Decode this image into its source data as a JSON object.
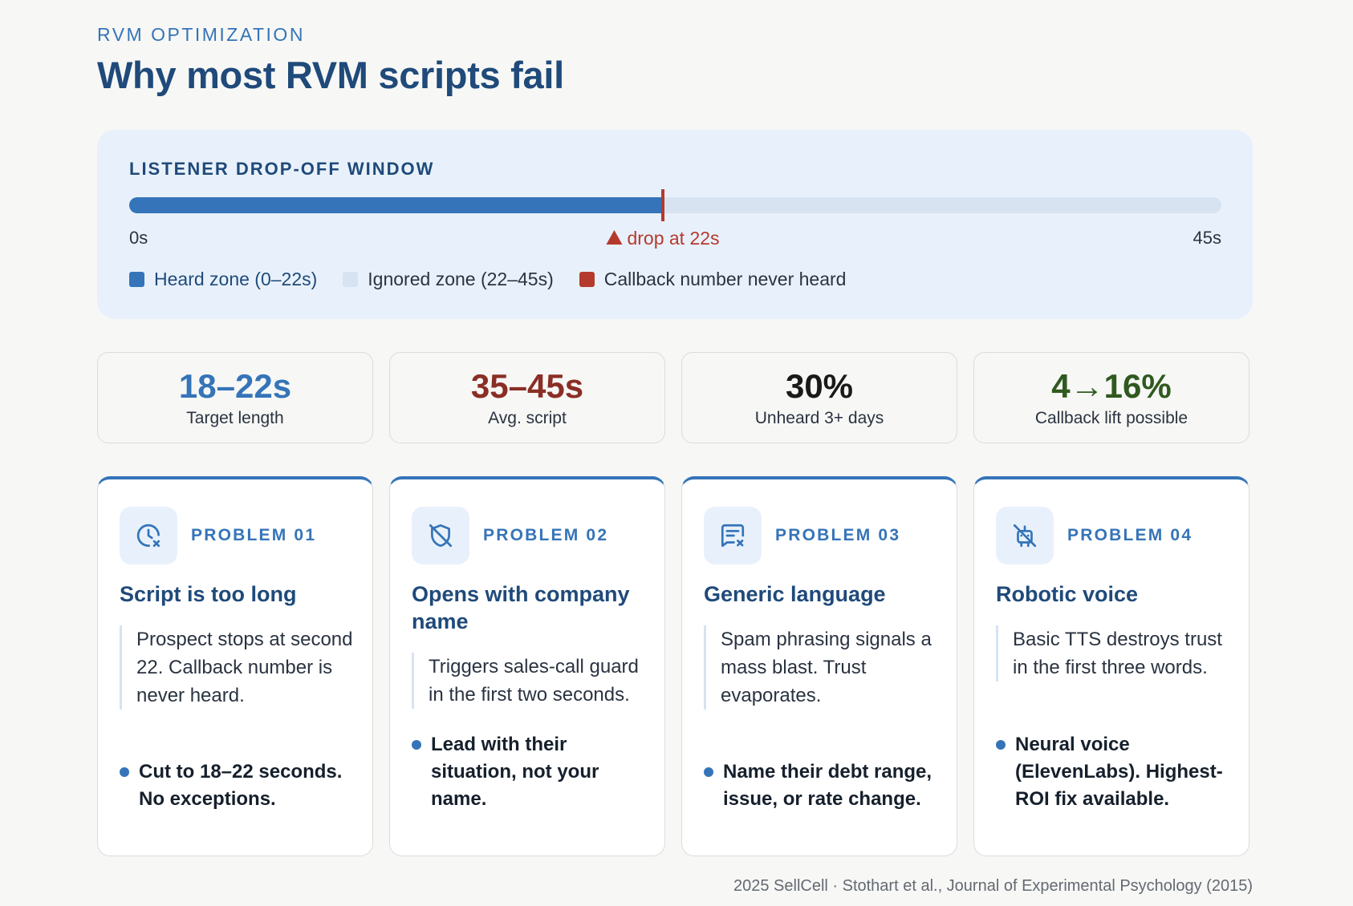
{
  "header": {
    "eyebrow": "RVM OPTIMIZATION",
    "title": "Why most RVM scripts fail"
  },
  "dropoff": {
    "label": "LISTENER DROP-OFF WINDOW",
    "heard_fraction": 0.4889,
    "axis_start": "0s",
    "axis_end": "45s",
    "drop_label": "drop at 22s",
    "legend": [
      {
        "label": "Heard zone (0–22s)",
        "color": "#3574b8"
      },
      {
        "label": "Ignored zone (22–45s)",
        "color": "#d7e3f0"
      },
      {
        "label": "Callback number never heard",
        "color": "#b53a2e"
      }
    ]
  },
  "stats": [
    {
      "value": "18–22s",
      "label": "Target length",
      "color": "#3574b8"
    },
    {
      "value": "35–45s",
      "label": "Avg. script",
      "color": "#8a2e26"
    },
    {
      "value": "30%",
      "label": "Unheard 3+ days",
      "color": "#1a1a1a"
    },
    {
      "value": "4→16%",
      "label": "Callback lift possible",
      "color": "#2f5a1f"
    }
  ],
  "cards": [
    {
      "icon": "clock-x-icon",
      "tag": "PROBLEM 01",
      "title": "Script is too long",
      "desc": "Prospect stops at second 22. Callback number is never heard.",
      "fix": "Cut to 18–22 seconds. No exceptions."
    },
    {
      "icon": "shield-off-icon",
      "tag": "PROBLEM 02",
      "title": "Opens with company name",
      "desc": "Triggers sales-call guard in the first two seconds.",
      "fix": "Lead with their situation, not your name."
    },
    {
      "icon": "message-x-icon",
      "tag": "PROBLEM 03",
      "title": "Generic language",
      "desc": "Spam phrasing signals a mass blast. Trust evaporates.",
      "fix": "Name their debt range, issue, or rate change."
    },
    {
      "icon": "robot-off-icon",
      "tag": "PROBLEM 04",
      "title": "Robotic voice",
      "desc": "Basic TTS destroys trust in the first three words.",
      "fix": "Neural voice (ElevenLabs). Highest-ROI fix available."
    }
  ],
  "footer": "2025 SellCell · Stothart et al., Journal of Experimental Psychology (2015)"
}
